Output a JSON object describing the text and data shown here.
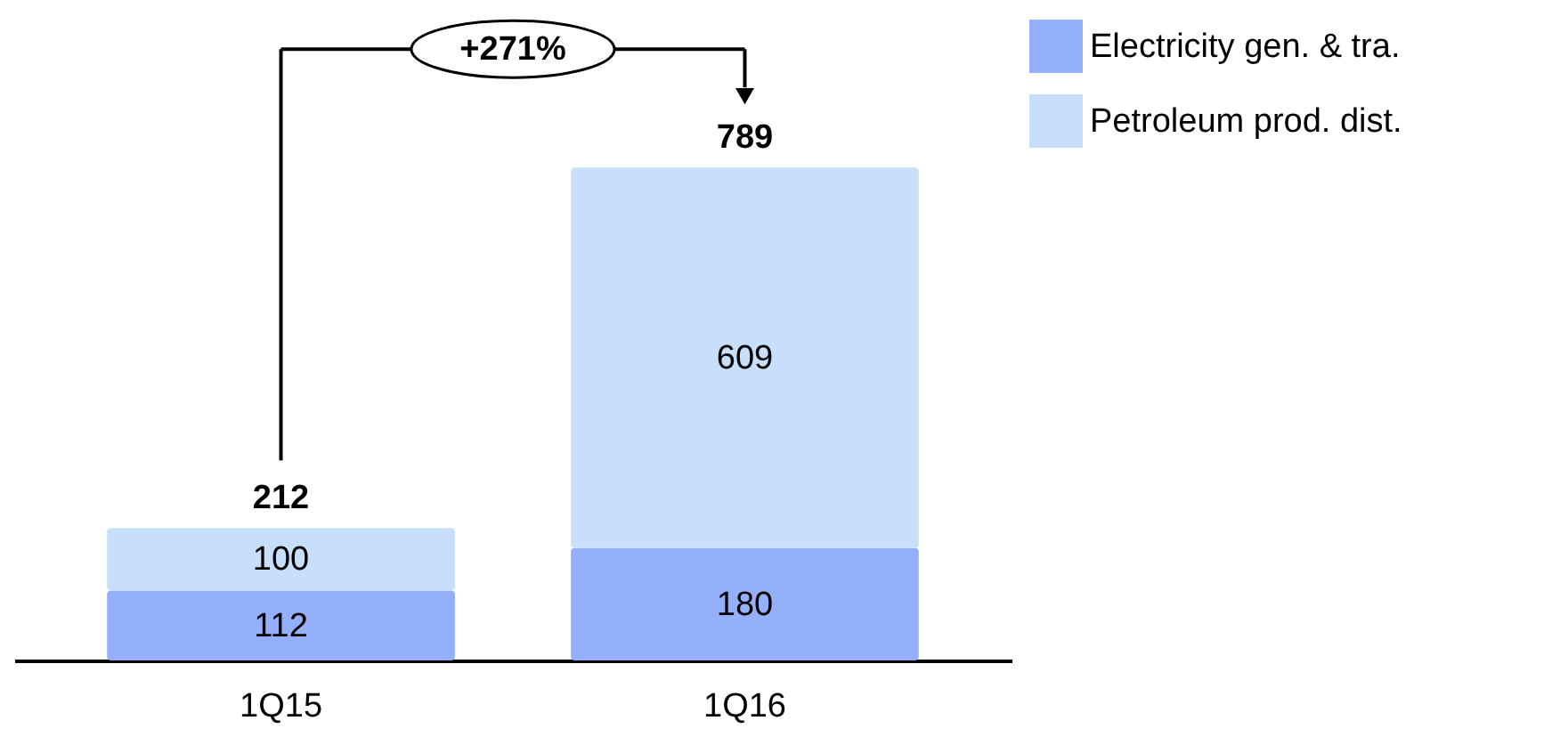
{
  "chart_data": {
    "type": "bar",
    "stacked": true,
    "categories": [
      "1Q15",
      "1Q16"
    ],
    "series": [
      {
        "name": "Electricity gen. & tra.",
        "color": "#94b0fa",
        "values": [
          112,
          180
        ]
      },
      {
        "name": "Petroleum prod. dist.",
        "color": "#c7dffa",
        "values": [
          100,
          609
        ]
      }
    ],
    "data_labels": true,
    "totals": [
      "212",
      "789"
    ],
    "annotations": [
      "+271%"
    ],
    "legend": "right"
  }
}
